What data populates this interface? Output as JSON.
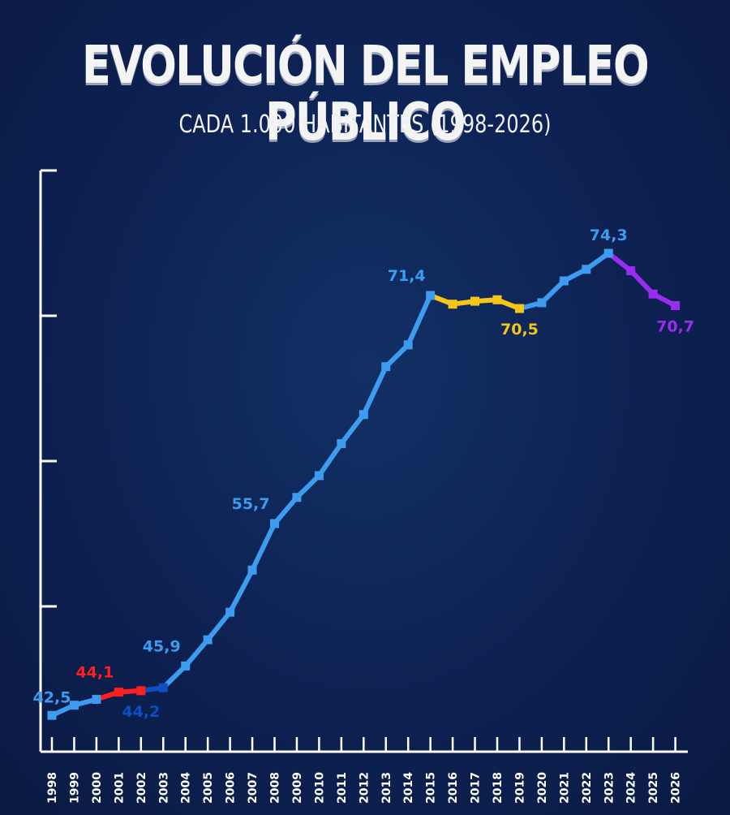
{
  "title": "EVOLUCIÓN DEL EMPLEO PÚBLICO",
  "subtitle": "CADA 1.000 HABITANTES (1998-2026)",
  "colors": {
    "background": "#0d2152",
    "main": "#3d9bf0",
    "red": "#ff1f1f",
    "darkblue": "#0e4fc4",
    "yellow": "#f5c518",
    "purple": "#9a2cf0",
    "axis": "#ffffff"
  },
  "chart_data": {
    "type": "line",
    "x": [
      "1998",
      "1999",
      "2000",
      "2001",
      "2002",
      "2003",
      "2004",
      "2005",
      "2006",
      "2007",
      "2008",
      "2009",
      "2010",
      "2011",
      "2012",
      "2013",
      "2014",
      "2015",
      "2016",
      "2017",
      "2018",
      "2019",
      "2020",
      "2021",
      "2022",
      "2023",
      "2024",
      "2025",
      "2026"
    ],
    "values": [
      42.5,
      43.2,
      43.6,
      44.1,
      44.2,
      44.4,
      45.9,
      47.7,
      49.6,
      52.5,
      55.7,
      57.5,
      59.0,
      61.2,
      63.2,
      66.5,
      68.0,
      71.4,
      70.8,
      71.0,
      71.1,
      70.5,
      70.9,
      72.4,
      73.2,
      74.3,
      73.1,
      71.5,
      70.7
    ],
    "segments": [
      {
        "from": 0,
        "to": 2,
        "color": "#3d9bf0"
      },
      {
        "from": 2,
        "to": 4,
        "color": "#ff1f1f"
      },
      {
        "from": 4,
        "to": 5,
        "color": "#0e4fc4"
      },
      {
        "from": 5,
        "to": 17,
        "color": "#3d9bf0"
      },
      {
        "from": 17,
        "to": 21,
        "color": "#f5c518"
      },
      {
        "from": 21,
        "to": 25,
        "color": "#3d9bf0"
      },
      {
        "from": 25,
        "to": 28,
        "color": "#9a2cf0"
      }
    ],
    "labels": [
      {
        "index": 0,
        "text": "42,5",
        "color": "#3d9bf0",
        "position": "above"
      },
      {
        "index": 3,
        "text": "44,1",
        "color": "#ff1f1f",
        "position": "above-left"
      },
      {
        "index": 4,
        "text": "44,2",
        "color": "#0e4fc4",
        "position": "below"
      },
      {
        "index": 6,
        "text": "45,9",
        "color": "#3d9bf0",
        "position": "above-left"
      },
      {
        "index": 10,
        "text": "55,7",
        "color": "#3d9bf0",
        "position": "above-left"
      },
      {
        "index": 17,
        "text": "71,4",
        "color": "#3d9bf0",
        "position": "above-left"
      },
      {
        "index": 21,
        "text": "70,5",
        "color": "#f5c518",
        "position": "below"
      },
      {
        "index": 25,
        "text": "74,3",
        "color": "#3d9bf0",
        "position": "above"
      },
      {
        "index": 28,
        "text": "70,7",
        "color": "#9a2cf0",
        "position": "below"
      }
    ],
    "ylim": [
      40,
      80
    ],
    "y_ticks": [
      40,
      50,
      60,
      70,
      80
    ],
    "grid": false,
    "legend": "none"
  }
}
